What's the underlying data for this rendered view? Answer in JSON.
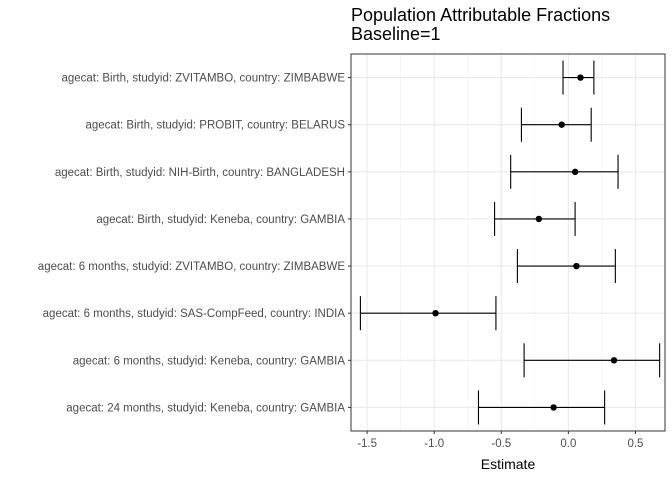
{
  "chart_data": {
    "type": "forest",
    "title": "Population Attributable Fractions",
    "subtitle": "Baseline=1",
    "xlabel": "Estimate",
    "ylabel": "",
    "xlim": [
      -1.62,
      0.72
    ],
    "xticks": [
      -1.5,
      -1.0,
      -0.5,
      0.0,
      0.5
    ],
    "xtick_labels": [
      "-1.5",
      "-1.0",
      "-0.5",
      "0.0",
      "0.5"
    ],
    "grid": true,
    "legend": "none",
    "rows": [
      {
        "label": "agecat: Birth, studyid: ZVITAMBO, country: ZIMBABWE",
        "estimate": 0.09,
        "lower": -0.04,
        "upper": 0.19
      },
      {
        "label": "agecat: Birth, studyid: PROBIT, country: BELARUS",
        "estimate": -0.05,
        "lower": -0.35,
        "upper": 0.17
      },
      {
        "label": "agecat: Birth, studyid: NIH-Birth, country: BANGLADESH",
        "estimate": 0.05,
        "lower": -0.43,
        "upper": 0.37
      },
      {
        "label": "agecat: Birth, studyid: Keneba, country: GAMBIA",
        "estimate": -0.22,
        "lower": -0.55,
        "upper": 0.05
      },
      {
        "label": "agecat: 6 months, studyid: ZVITAMBO, country: ZIMBABWE",
        "estimate": 0.06,
        "lower": -0.38,
        "upper": 0.35
      },
      {
        "label": "agecat: 6 months, studyid: SAS-CompFeed, country: INDIA",
        "estimate": -0.99,
        "lower": -1.55,
        "upper": -0.54
      },
      {
        "label": "agecat: 6 months, studyid: Keneba, country: GAMBIA",
        "estimate": 0.34,
        "lower": -0.33,
        "upper": 0.68
      },
      {
        "label": "agecat: 24 months, studyid: Keneba, country: GAMBIA",
        "estimate": -0.11,
        "lower": -0.67,
        "upper": 0.27
      }
    ]
  }
}
